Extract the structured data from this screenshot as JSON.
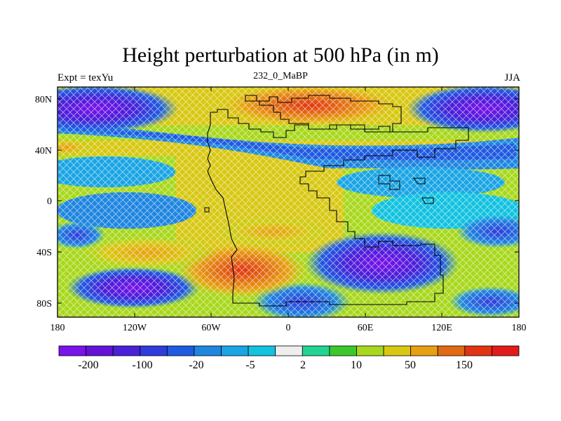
{
  "title": "Height perturbation at 500 hPa (in m)",
  "left_string": "Expt = texYu",
  "center_string": "232_0_MaBP",
  "right_string": "JJA",
  "lat_ticks": [
    "80N",
    "40N",
    "0",
    "40S",
    "80S"
  ],
  "lon_ticks": [
    "180",
    "120W",
    "60W",
    "0",
    "60E",
    "120E",
    "180"
  ],
  "colorbar": {
    "colors": [
      "#7a12ea",
      "#6412d8",
      "#4a20d8",
      "#2f3bda",
      "#1f5be0",
      "#1f86e0",
      "#1aa5e4",
      "#12c2e0",
      "#eeeeee",
      "#22d494",
      "#3cc82a",
      "#a8d81c",
      "#d8c812",
      "#e8a012",
      "#e26a14",
      "#e23414",
      "#e01c1c"
    ],
    "labels": [
      "-200",
      "-100",
      "-20",
      "-5",
      "2",
      "10",
      "50",
      "150"
    ]
  }
}
